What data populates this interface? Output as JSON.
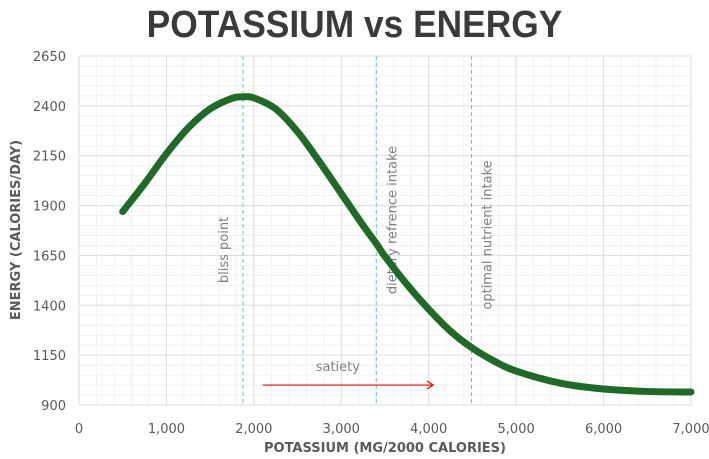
{
  "chart_data": {
    "type": "line",
    "title": "POTASSIUM vs ENERGY",
    "xlabel": "POTASSIUM (MG/2000 CALORIES)",
    "ylabel": "ENERGY (CALORIES/DAY)",
    "xlim": [
      0,
      7000
    ],
    "ylim": [
      900,
      2650
    ],
    "xticks": [
      0,
      1000,
      2000,
      3000,
      4000,
      5000,
      6000,
      7000
    ],
    "xtick_labels": [
      "0",
      "1,000",
      "2,000",
      "3,000",
      "4,000",
      "5,000",
      "6,000",
      "7,000"
    ],
    "yticks": [
      900,
      1150,
      1400,
      1650,
      1900,
      2150,
      2400,
      2650
    ],
    "ytick_labels": [
      "900",
      "1150",
      "1400",
      "1650",
      "1900",
      "2150",
      "2400",
      "2650"
    ],
    "grid": true,
    "series": [
      {
        "name": "energy",
        "color": "#1e6b27",
        "x": [
          500,
          750,
          1000,
          1250,
          1500,
          1750,
          1875,
          2000,
          2250,
          2500,
          2750,
          3000,
          3250,
          3400,
          3500,
          3750,
          4000,
          4250,
          4500,
          4750,
          5000,
          5500,
          6000,
          6500,
          7000
        ],
        "y": [
          1870,
          2010,
          2160,
          2290,
          2385,
          2438,
          2445,
          2440,
          2385,
          2270,
          2120,
          1960,
          1800,
          1710,
          1645,
          1505,
          1380,
          1270,
          1185,
          1120,
          1070,
          1010,
          980,
          968,
          965
        ]
      }
    ],
    "reference_lines": [
      {
        "x": 1875,
        "label": "bliss point",
        "color": "#6fb7de"
      },
      {
        "x": 3400,
        "label": "dietary refrence intake",
        "color": "#6fb7de"
      },
      {
        "x": 4490,
        "label": "optimal nutrient intake",
        "color": "#6fb7de"
      }
    ],
    "annotation": {
      "label": "satiety",
      "arrow_from_x": 2100,
      "arrow_to_x": 4050,
      "arrow_y": 1000,
      "color": "#ff0000"
    }
  }
}
